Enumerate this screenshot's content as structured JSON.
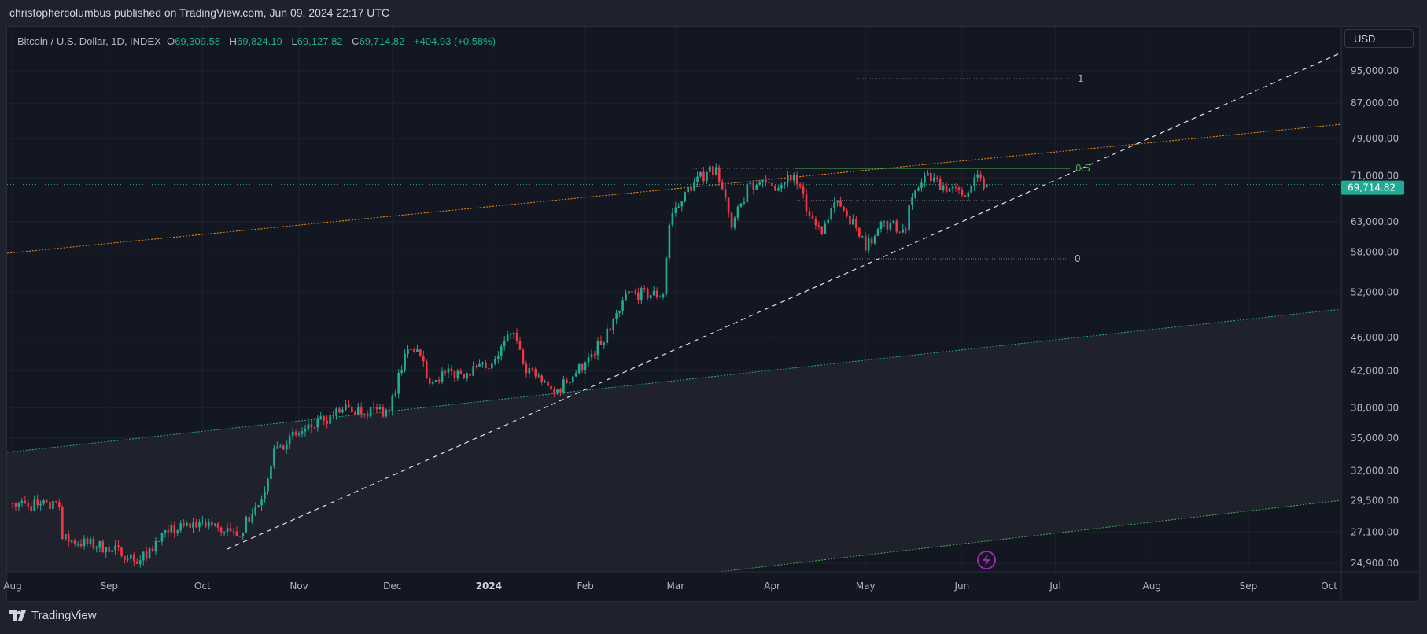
{
  "header": {
    "published_text": "christophercolumbus published on TradingView.com, Jun 09, 2024 22:17 UTC"
  },
  "legend": {
    "symbol": "Bitcoin / U.S. Dollar, 1D, INDEX",
    "open_label": "O",
    "open": "69,309.58",
    "high_label": "H",
    "high": "69,824.19",
    "low_label": "L",
    "low": "69,127.82",
    "close_label": "C",
    "close": "69,714.82",
    "change": "+404.93 (+0.58%)"
  },
  "price_axis": {
    "currency_button": "USD",
    "ticks": [
      "95,000.00",
      "87,000.00",
      "79,000.00",
      "71,000.00",
      "63,000.00",
      "58,000.00",
      "52,000.00",
      "46,000.00",
      "42,000.00",
      "38,000.00",
      "35,000.00",
      "32,000.00",
      "29,500.00",
      "27,100.00",
      "24,900.00"
    ],
    "last_price_tag": "69,714.82",
    "scale": "log"
  },
  "time_axis": {
    "ticks": [
      "Aug",
      "Sep",
      "Oct",
      "Nov",
      "Dec",
      "2024",
      "Feb",
      "Mar",
      "Apr",
      "May",
      "Jun",
      "Jul",
      "Aug",
      "Sep",
      "Oct"
    ]
  },
  "fib_labels": {
    "level_1": "1",
    "level_05": "0.5",
    "level_0": "0"
  },
  "footer": {
    "brand": "TradingView"
  },
  "colors": {
    "up": "#22ab94",
    "down": "#f23645",
    "orange_line": "#f7931a",
    "teal_line": "#22ab94",
    "green_line": "#4caf50",
    "fib_05": "#4caf50",
    "price_tag": "#22ab94",
    "lightning_badge": "#9c27b0"
  },
  "chart_data": {
    "type": "candlestick",
    "interval": "1D",
    "y_scale": "log",
    "ylim": [
      24900,
      95000
    ],
    "xlim": [
      "2023-08-01",
      "2024-10-01"
    ],
    "grid": true,
    "close_path": [
      [
        "2023-08-01",
        29300
      ],
      [
        "2023-08-16",
        29000
      ],
      [
        "2023-08-17",
        26600
      ],
      [
        "2023-08-31",
        26000
      ],
      [
        "2023-09-11",
        25100
      ],
      [
        "2023-09-20",
        27100
      ],
      [
        "2023-10-01",
        27900
      ],
      [
        "2023-10-12",
        26800
      ],
      [
        "2023-10-20",
        29600
      ],
      [
        "2023-10-24",
        34000
      ],
      [
        "2023-11-01",
        35400
      ],
      [
        "2023-11-09",
        36700
      ],
      [
        "2023-11-15",
        37800
      ],
      [
        "2023-11-30",
        37700
      ],
      [
        "2023-12-05",
        44000
      ],
      [
        "2023-12-10",
        43800
      ],
      [
        "2023-12-12",
        41200
      ],
      [
        "2023-12-31",
        42300
      ],
      [
        "2024-01-09",
        46600
      ],
      [
        "2024-01-12",
        42800
      ],
      [
        "2024-01-22",
        39500
      ],
      [
        "2024-02-01",
        43000
      ],
      [
        "2024-02-09",
        47000
      ],
      [
        "2024-02-14",
        51800
      ],
      [
        "2024-02-26",
        51700
      ],
      [
        "2024-02-28",
        62500
      ],
      [
        "2024-03-04",
        68300
      ],
      [
        "2024-03-11",
        72100
      ],
      [
        "2024-03-14",
        73100
      ],
      [
        "2024-03-19",
        62000
      ],
      [
        "2024-03-25",
        70000
      ],
      [
        "2024-04-01",
        69500
      ],
      [
        "2024-04-08",
        71600
      ],
      [
        "2024-04-13",
        64000
      ],
      [
        "2024-04-17",
        61000
      ],
      [
        "2024-04-22",
        66800
      ],
      [
        "2024-04-30",
        60600
      ],
      [
        "2024-05-01",
        58300
      ],
      [
        "2024-05-06",
        63000
      ],
      [
        "2024-05-14",
        61500
      ],
      [
        "2024-05-15",
        66000
      ],
      [
        "2024-05-20",
        71400
      ],
      [
        "2024-06-01",
        67700
      ],
      [
        "2024-06-05",
        71100
      ],
      [
        "2024-06-09",
        69714.82
      ]
    ],
    "last_candle": {
      "date": "2024-06-09",
      "open": 69309.58,
      "high": 69824.19,
      "low": 69127.82,
      "close": 69714.82
    },
    "drawings": {
      "fib_levels": [
        {
          "level": "1",
          "price": 92800
        },
        {
          "level": "0.5",
          "price": 73100
        },
        {
          "level": "0",
          "price": 56500
        }
      ],
      "support_line_price": 67000
    }
  }
}
